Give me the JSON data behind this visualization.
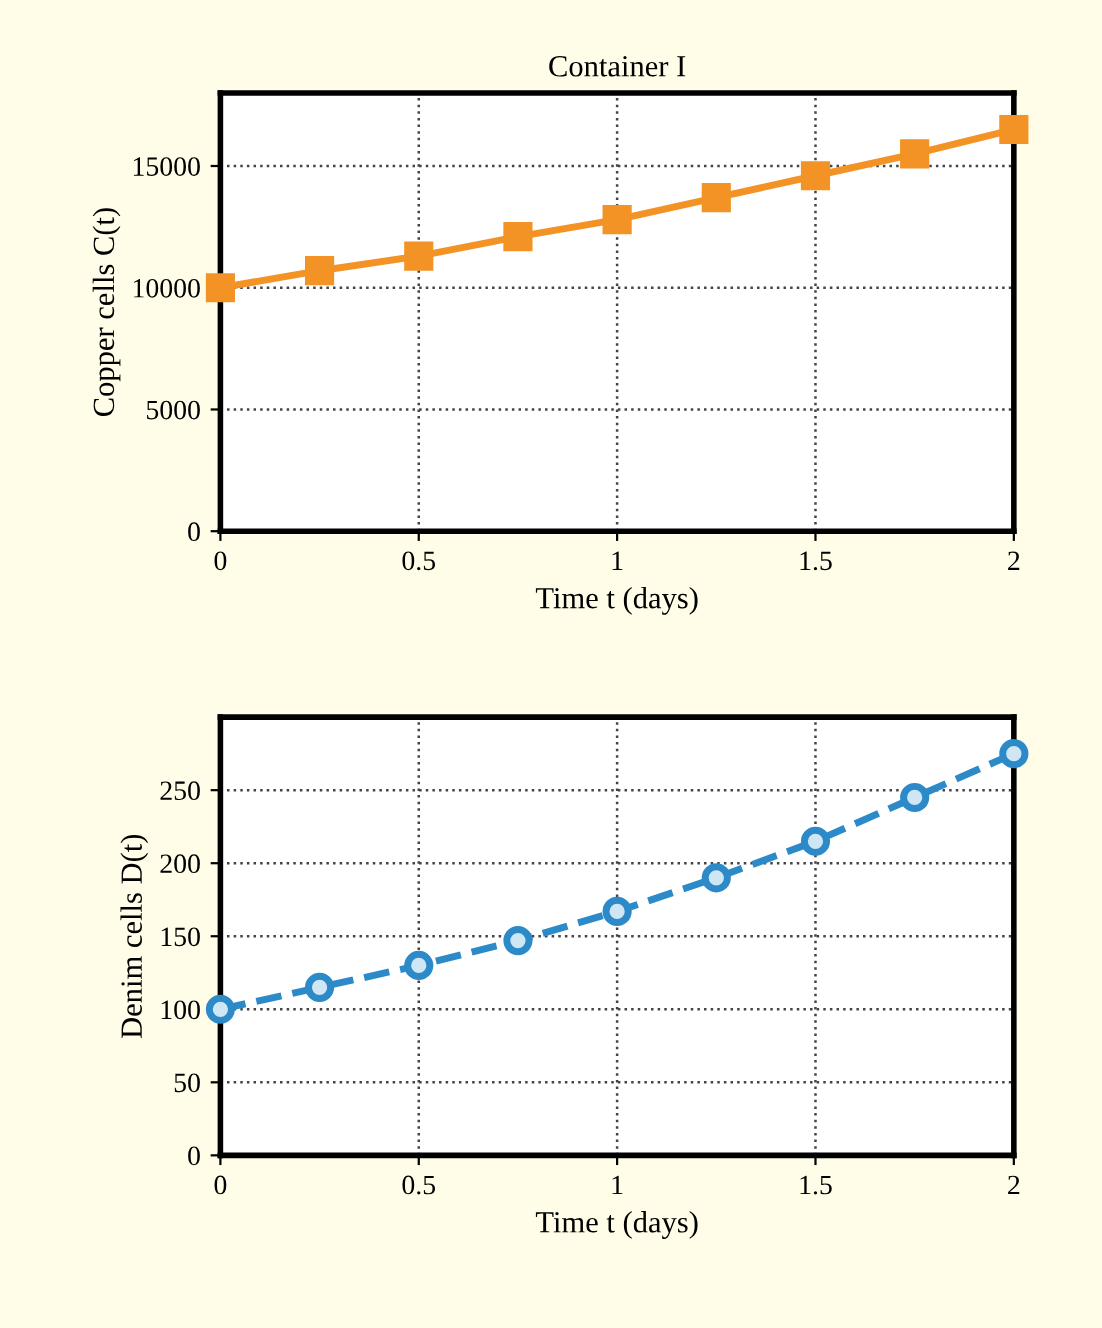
{
  "chart_data": [
    {
      "type": "line",
      "title": "Container I",
      "xlabel": "Time t (days)",
      "ylabel": "Copper cells C(t)",
      "x": [
        0,
        0.25,
        0.5,
        0.75,
        1,
        1.25,
        1.5,
        1.75,
        2
      ],
      "series": [
        {
          "color": "#f39325",
          "values": [
            10000,
            10700,
            11300,
            12100,
            12800,
            13700,
            14600,
            15500,
            16500
          ],
          "marker": "square",
          "line_style": "solid"
        }
      ],
      "xlim": [
        0,
        2
      ],
      "xticks": [
        0,
        0.5,
        1,
        1.5,
        2
      ],
      "ylim": [
        0,
        18000
      ],
      "yticks": [
        0,
        5000,
        10000,
        15000
      ],
      "grid": true,
      "legend": false
    },
    {
      "type": "line",
      "xlabel": "Time t (days)",
      "ylabel": "Denim cells D(t)",
      "x": [
        0,
        0.25,
        0.5,
        0.75,
        1,
        1.25,
        1.5,
        1.75,
        2
      ],
      "series": [
        {
          "color": "#2c8ac8",
          "values": [
            100,
            115,
            130,
            147,
            167,
            190,
            215,
            245,
            275
          ],
          "marker": "circle",
          "line_style": "dashed"
        }
      ],
      "xlim": [
        0,
        2
      ],
      "xticks": [
        0,
        0.5,
        1,
        1.5,
        2
      ],
      "ylim": [
        0,
        300
      ],
      "yticks": [
        0,
        50,
        100,
        150,
        200,
        250
      ],
      "grid": true,
      "legend": false
    }
  ]
}
